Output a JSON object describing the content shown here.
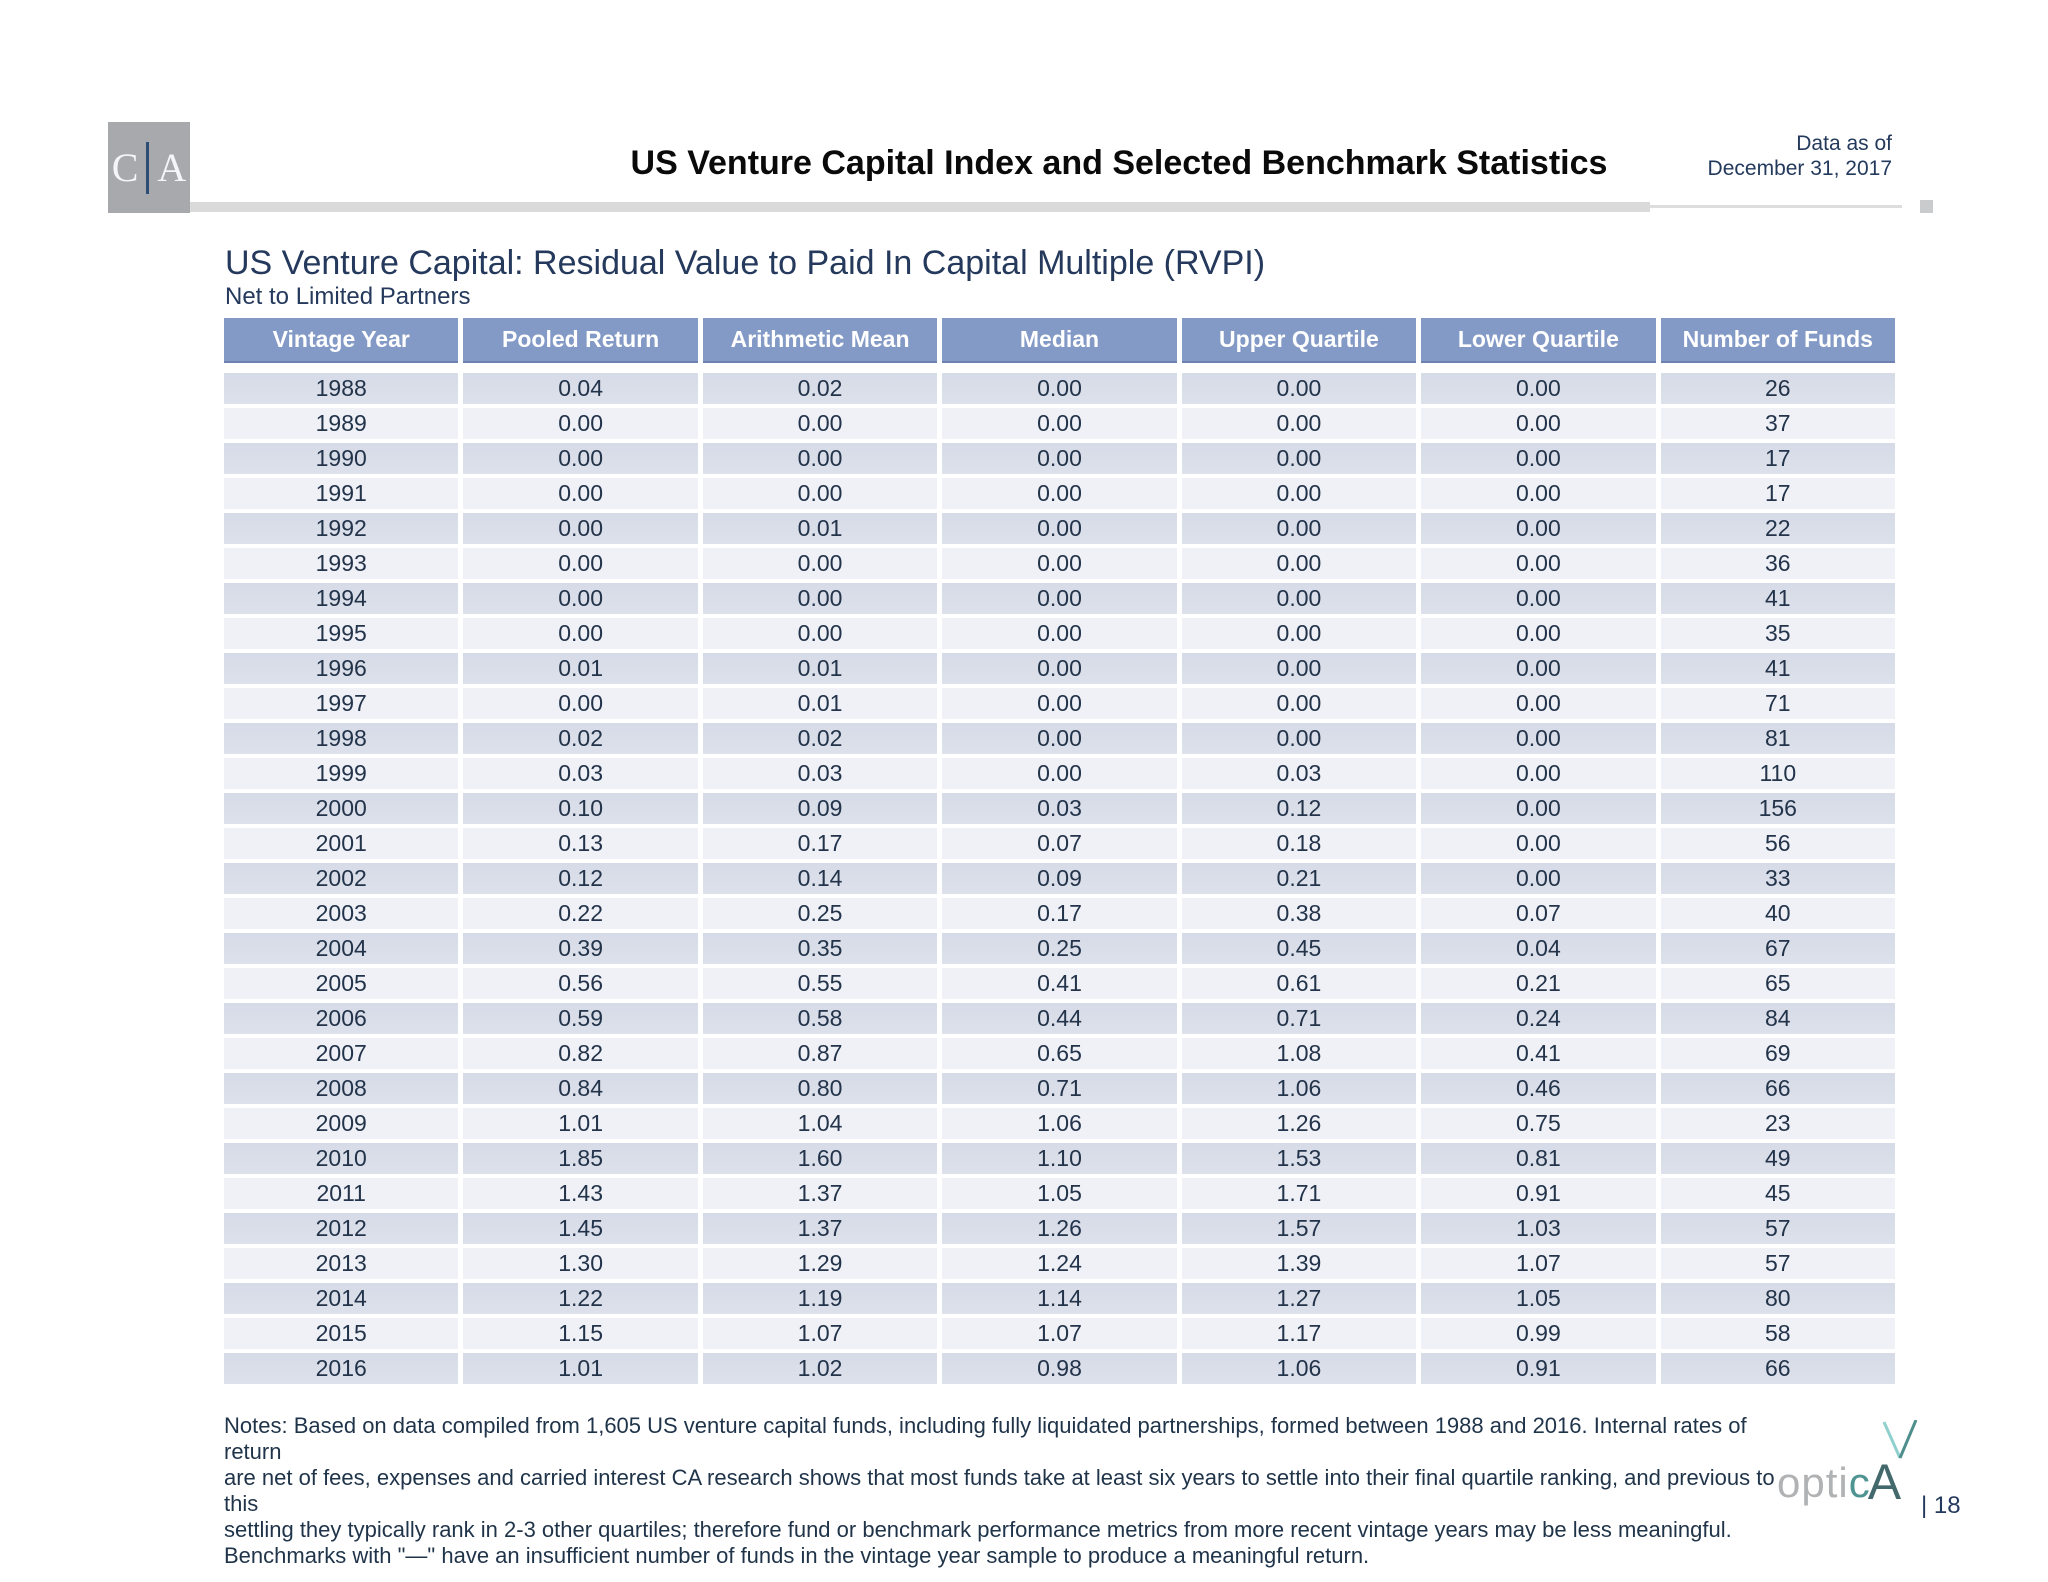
{
  "header": {
    "logo": {
      "left_letter": "C",
      "right_letter": "A"
    },
    "title": "US Venture Capital Index and Selected Benchmark Statistics",
    "data_as_of": {
      "line1": "Data as of",
      "line2": "December 31, 2017"
    }
  },
  "section": {
    "title": "US Venture Capital: Residual Value to Paid In Capital Multiple (RVPI)",
    "subtitle": "Net to Limited Partners"
  },
  "table": {
    "columns": [
      "Vintage Year",
      "Pooled Return",
      "Arithmetic Mean",
      "Median",
      "Upper Quartile",
      "Lower Quartile",
      "Number of Funds"
    ],
    "rows": [
      [
        "1988",
        "0.04",
        "0.02",
        "0.00",
        "0.00",
        "0.00",
        "26"
      ],
      [
        "1989",
        "0.00",
        "0.00",
        "0.00",
        "0.00",
        "0.00",
        "37"
      ],
      [
        "1990",
        "0.00",
        "0.00",
        "0.00",
        "0.00",
        "0.00",
        "17"
      ],
      [
        "1991",
        "0.00",
        "0.00",
        "0.00",
        "0.00",
        "0.00",
        "17"
      ],
      [
        "1992",
        "0.00",
        "0.01",
        "0.00",
        "0.00",
        "0.00",
        "22"
      ],
      [
        "1993",
        "0.00",
        "0.00",
        "0.00",
        "0.00",
        "0.00",
        "36"
      ],
      [
        "1994",
        "0.00",
        "0.00",
        "0.00",
        "0.00",
        "0.00",
        "41"
      ],
      [
        "1995",
        "0.00",
        "0.00",
        "0.00",
        "0.00",
        "0.00",
        "35"
      ],
      [
        "1996",
        "0.01",
        "0.01",
        "0.00",
        "0.00",
        "0.00",
        "41"
      ],
      [
        "1997",
        "0.00",
        "0.01",
        "0.00",
        "0.00",
        "0.00",
        "71"
      ],
      [
        "1998",
        "0.02",
        "0.02",
        "0.00",
        "0.00",
        "0.00",
        "81"
      ],
      [
        "1999",
        "0.03",
        "0.03",
        "0.00",
        "0.03",
        "0.00",
        "110"
      ],
      [
        "2000",
        "0.10",
        "0.09",
        "0.03",
        "0.12",
        "0.00",
        "156"
      ],
      [
        "2001",
        "0.13",
        "0.17",
        "0.07",
        "0.18",
        "0.00",
        "56"
      ],
      [
        "2002",
        "0.12",
        "0.14",
        "0.09",
        "0.21",
        "0.00",
        "33"
      ],
      [
        "2003",
        "0.22",
        "0.25",
        "0.17",
        "0.38",
        "0.07",
        "40"
      ],
      [
        "2004",
        "0.39",
        "0.35",
        "0.25",
        "0.45",
        "0.04",
        "67"
      ],
      [
        "2005",
        "0.56",
        "0.55",
        "0.41",
        "0.61",
        "0.21",
        "65"
      ],
      [
        "2006",
        "0.59",
        "0.58",
        "0.44",
        "0.71",
        "0.24",
        "84"
      ],
      [
        "2007",
        "0.82",
        "0.87",
        "0.65",
        "1.08",
        "0.41",
        "69"
      ],
      [
        "2008",
        "0.84",
        "0.80",
        "0.71",
        "1.06",
        "0.46",
        "66"
      ],
      [
        "2009",
        "1.01",
        "1.04",
        "1.06",
        "1.26",
        "0.75",
        "23"
      ],
      [
        "2010",
        "1.85",
        "1.60",
        "1.10",
        "1.53",
        "0.81",
        "49"
      ],
      [
        "2011",
        "1.43",
        "1.37",
        "1.05",
        "1.71",
        "0.91",
        "45"
      ],
      [
        "2012",
        "1.45",
        "1.37",
        "1.26",
        "1.57",
        "1.03",
        "57"
      ],
      [
        "2013",
        "1.30",
        "1.29",
        "1.24",
        "1.39",
        "1.07",
        "57"
      ],
      [
        "2014",
        "1.22",
        "1.19",
        "1.14",
        "1.27",
        "1.05",
        "80"
      ],
      [
        "2015",
        "1.15",
        "1.07",
        "1.07",
        "1.17",
        "0.99",
        "58"
      ],
      [
        "2016",
        "1.01",
        "1.02",
        "0.98",
        "1.06",
        "0.91",
        "66"
      ]
    ]
  },
  "notes": {
    "lines": [
      "Notes: Based on data compiled from 1,605 US venture capital funds, including fully liquidated partnerships, formed between 1988 and 2016. Internal rates of return",
      "are net of fees, expenses and carried interest CA research shows that most funds take at least six years to settle into their final quartile ranking, and previous to this",
      "settling they typically rank in 2-3 other quartiles; therefore fund or benchmark performance metrics from more recent vintage years may be less meaningful.",
      "Benchmarks with \"—\" have an insufficient number of funds in the vintage year sample to produce a meaningful return."
    ]
  },
  "footer": {
    "brand": {
      "opti": "opti",
      "c": "c",
      "a": "A"
    },
    "page_number": "| 18"
  },
  "colors": {
    "header_bg": "#8399C6",
    "row_dark": "#D9DEE9",
    "row_light": "#EFF1F7",
    "navy_text": "#243A5C",
    "bar_gray": "#DADADA",
    "logo_gray": "#A7A9AC",
    "brand_teal": "#4E9490",
    "brand_teal_light": "#8FD0CE"
  }
}
